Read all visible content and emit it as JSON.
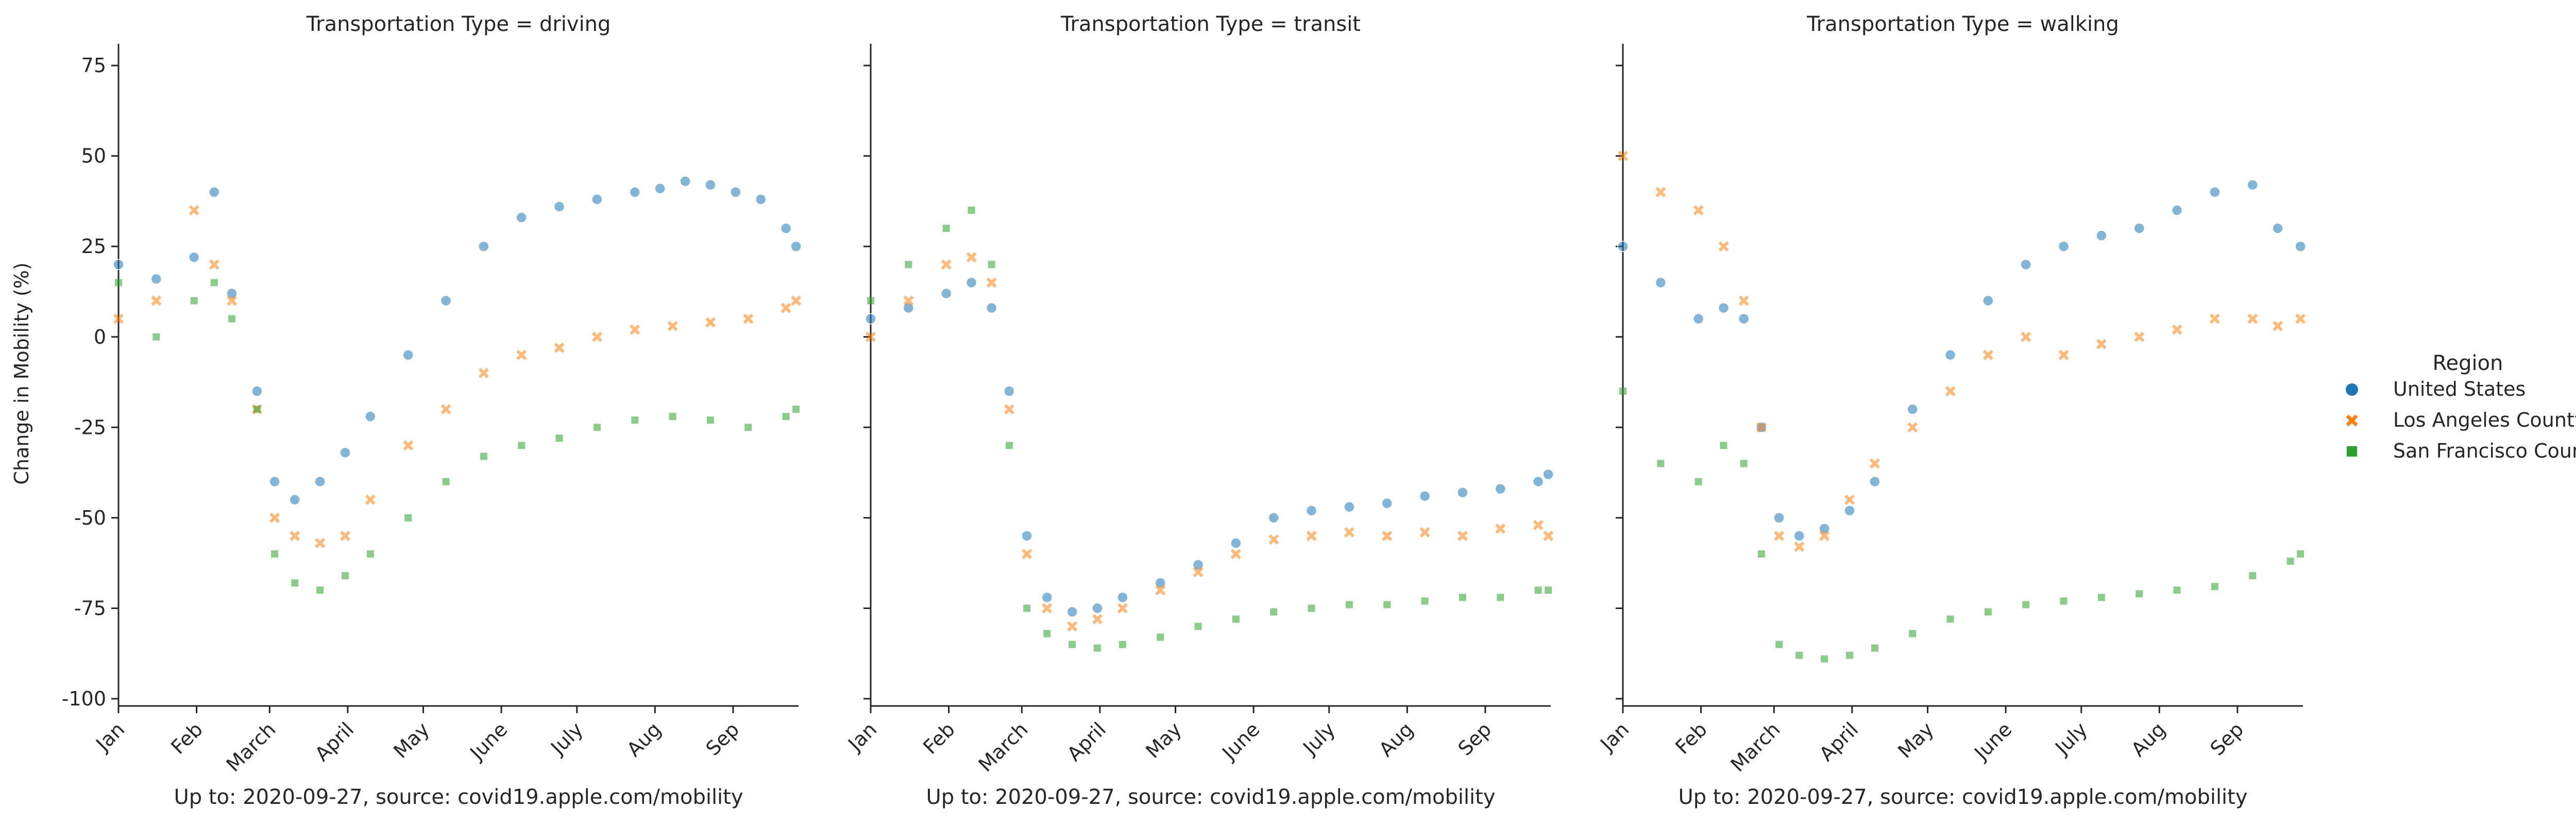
{
  "chart_data": {
    "type": "scatter",
    "panels": [
      {
        "title": "Transportation Type = driving",
        "xlabel": "Up to: 2020-09-27, source: covid19.apple.com/mobility"
      },
      {
        "title": "Transportation Type = transit",
        "xlabel": "Up to: 2020-09-27, source: covid19.apple.com/mobility"
      },
      {
        "title": "Transportation Type = walking",
        "xlabel": "Up to: 2020-09-27, source: covid19.apple.com/mobility"
      }
    ],
    "ylabel": "Change in Mobility (%)",
    "ylim": [
      -102,
      81
    ],
    "yticks": [
      75,
      50,
      25,
      0,
      -25,
      -50,
      -75,
      -100
    ],
    "xlim": [
      "2020-01-01",
      "2020-09-27"
    ],
    "xticks": [
      "Jan",
      "Feb",
      "March",
      "April",
      "May",
      "June",
      "July",
      "Aug",
      "Sep"
    ],
    "legend": {
      "title": "Region",
      "placement": "right"
    },
    "series": [
      {
        "name": "United States",
        "marker": "circle",
        "color": "#1f77b4",
        "values": {
          "driving": [
            [
              0,
              20
            ],
            [
              15,
              16
            ],
            [
              30,
              22
            ],
            [
              38,
              40
            ],
            [
              45,
              12
            ],
            [
              55,
              -15
            ],
            [
              62,
              -40
            ],
            [
              70,
              -45
            ],
            [
              80,
              -40
            ],
            [
              90,
              -32
            ],
            [
              100,
              -22
            ],
            [
              115,
              -5
            ],
            [
              130,
              10
            ],
            [
              145,
              25
            ],
            [
              160,
              33
            ],
            [
              175,
              36
            ],
            [
              190,
              38
            ],
            [
              205,
              40
            ],
            [
              215,
              41
            ],
            [
              225,
              43
            ],
            [
              235,
              42
            ],
            [
              245,
              40
            ],
            [
              255,
              38
            ],
            [
              265,
              30
            ],
            [
              269,
              25
            ]
          ],
          "transit": [
            [
              0,
              5
            ],
            [
              15,
              8
            ],
            [
              30,
              12
            ],
            [
              40,
              15
            ],
            [
              48,
              8
            ],
            [
              55,
              -15
            ],
            [
              62,
              -55
            ],
            [
              70,
              -72
            ],
            [
              80,
              -76
            ],
            [
              90,
              -75
            ],
            [
              100,
              -72
            ],
            [
              115,
              -68
            ],
            [
              130,
              -63
            ],
            [
              145,
              -57
            ],
            [
              160,
              -50
            ],
            [
              175,
              -48
            ],
            [
              190,
              -47
            ],
            [
              205,
              -46
            ],
            [
              220,
              -44
            ],
            [
              235,
              -43
            ],
            [
              250,
              -42
            ],
            [
              265,
              -40
            ],
            [
              269,
              -38
            ]
          ],
          "walking": [
            [
              0,
              25
            ],
            [
              15,
              15
            ],
            [
              30,
              5
            ],
            [
              40,
              8
            ],
            [
              48,
              5
            ],
            [
              55,
              -25
            ],
            [
              62,
              -50
            ],
            [
              70,
              -55
            ],
            [
              80,
              -53
            ],
            [
              90,
              -48
            ],
            [
              100,
              -40
            ],
            [
              115,
              -20
            ],
            [
              130,
              -5
            ],
            [
              145,
              10
            ],
            [
              160,
              20
            ],
            [
              175,
              25
            ],
            [
              190,
              28
            ],
            [
              205,
              30
            ],
            [
              220,
              35
            ],
            [
              235,
              40
            ],
            [
              250,
              42
            ],
            [
              260,
              30
            ],
            [
              269,
              25
            ]
          ]
        }
      },
      {
        "name": "Los Angeles County",
        "marker": "x",
        "color": "#ff7f0e",
        "values": {
          "driving": [
            [
              0,
              5
            ],
            [
              15,
              10
            ],
            [
              30,
              35
            ],
            [
              38,
              20
            ],
            [
              45,
              10
            ],
            [
              55,
              -20
            ],
            [
              62,
              -50
            ],
            [
              70,
              -55
            ],
            [
              80,
              -57
            ],
            [
              90,
              -55
            ],
            [
              100,
              -45
            ],
            [
              115,
              -30
            ],
            [
              130,
              -20
            ],
            [
              145,
              -10
            ],
            [
              160,
              -5
            ],
            [
              175,
              -3
            ],
            [
              190,
              0
            ],
            [
              205,
              2
            ],
            [
              220,
              3
            ],
            [
              235,
              4
            ],
            [
              250,
              5
            ],
            [
              265,
              8
            ],
            [
              269,
              10
            ]
          ],
          "transit": [
            [
              0,
              0
            ],
            [
              15,
              10
            ],
            [
              30,
              20
            ],
            [
              40,
              22
            ],
            [
              48,
              15
            ],
            [
              55,
              -20
            ],
            [
              62,
              -60
            ],
            [
              70,
              -75
            ],
            [
              80,
              -80
            ],
            [
              90,
              -78
            ],
            [
              100,
              -75
            ],
            [
              115,
              -70
            ],
            [
              130,
              -65
            ],
            [
              145,
              -60
            ],
            [
              160,
              -56
            ],
            [
              175,
              -55
            ],
            [
              190,
              -54
            ],
            [
              205,
              -55
            ],
            [
              220,
              -54
            ],
            [
              235,
              -55
            ],
            [
              250,
              -53
            ],
            [
              265,
              -52
            ],
            [
              269,
              -55
            ]
          ],
          "walking": [
            [
              0,
              50
            ],
            [
              15,
              40
            ],
            [
              30,
              35
            ],
            [
              40,
              25
            ],
            [
              48,
              10
            ],
            [
              55,
              -25
            ],
            [
              62,
              -55
            ],
            [
              70,
              -58
            ],
            [
              80,
              -55
            ],
            [
              90,
              -45
            ],
            [
              100,
              -35
            ],
            [
              115,
              -25
            ],
            [
              130,
              -15
            ],
            [
              145,
              -5
            ],
            [
              160,
              0
            ],
            [
              175,
              -5
            ],
            [
              190,
              -2
            ],
            [
              205,
              0
            ],
            [
              220,
              2
            ],
            [
              235,
              5
            ],
            [
              250,
              5
            ],
            [
              260,
              3
            ],
            [
              269,
              5
            ]
          ]
        }
      },
      {
        "name": "San Francisco County",
        "marker": "square",
        "color": "#2ca02c",
        "values": {
          "driving": [
            [
              0,
              15
            ],
            [
              15,
              0
            ],
            [
              30,
              10
            ],
            [
              38,
              15
            ],
            [
              45,
              5
            ],
            [
              55,
              -20
            ],
            [
              62,
              -60
            ],
            [
              70,
              -68
            ],
            [
              80,
              -70
            ],
            [
              90,
              -66
            ],
            [
              100,
              -60
            ],
            [
              115,
              -50
            ],
            [
              130,
              -40
            ],
            [
              145,
              -33
            ],
            [
              160,
              -30
            ],
            [
              175,
              -28
            ],
            [
              190,
              -25
            ],
            [
              205,
              -23
            ],
            [
              220,
              -22
            ],
            [
              235,
              -23
            ],
            [
              250,
              -25
            ],
            [
              265,
              -22
            ],
            [
              269,
              -20
            ]
          ],
          "transit": [
            [
              0,
              10
            ],
            [
              15,
              20
            ],
            [
              30,
              30
            ],
            [
              40,
              35
            ],
            [
              48,
              20
            ],
            [
              55,
              -30
            ],
            [
              62,
              -75
            ],
            [
              70,
              -82
            ],
            [
              80,
              -85
            ],
            [
              90,
              -86
            ],
            [
              100,
              -85
            ],
            [
              115,
              -83
            ],
            [
              130,
              -80
            ],
            [
              145,
              -78
            ],
            [
              160,
              -76
            ],
            [
              175,
              -75
            ],
            [
              190,
              -74
            ],
            [
              205,
              -74
            ],
            [
              220,
              -73
            ],
            [
              235,
              -72
            ],
            [
              250,
              -72
            ],
            [
              265,
              -70
            ],
            [
              269,
              -70
            ]
          ],
          "walking": [
            [
              0,
              -15
            ],
            [
              15,
              -35
            ],
            [
              30,
              -40
            ],
            [
              40,
              -30
            ],
            [
              48,
              -35
            ],
            [
              55,
              -60
            ],
            [
              62,
              -85
            ],
            [
              70,
              -88
            ],
            [
              80,
              -89
            ],
            [
              90,
              -88
            ],
            [
              100,
              -86
            ],
            [
              115,
              -82
            ],
            [
              130,
              -78
            ],
            [
              145,
              -76
            ],
            [
              160,
              -74
            ],
            [
              175,
              -73
            ],
            [
              190,
              -72
            ],
            [
              205,
              -71
            ],
            [
              220,
              -70
            ],
            [
              235,
              -69
            ],
            [
              250,
              -66
            ],
            [
              265,
              -62
            ],
            [
              269,
              -60
            ]
          ]
        }
      }
    ]
  }
}
